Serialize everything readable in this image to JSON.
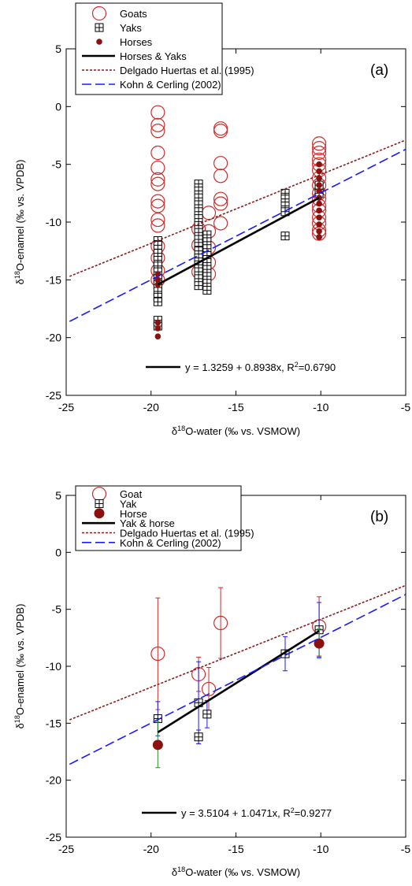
{
  "chart_data": [
    {
      "type": "scatter",
      "panel_label": "(a)",
      "xlabel": [
        "δ",
        "18",
        "O-water (‰ vs. VSMOW)"
      ],
      "ylabel": [
        "δ",
        "18",
        "O-enamel (‰ vs. VPDB)"
      ],
      "equation": [
        "y = 1.3259 + 0.8938x, R",
        "2",
        "=0.6790"
      ],
      "xlim": [
        -25,
        -5
      ],
      "ylim": [
        -25,
        5
      ],
      "xticks": [
        -25,
        -20,
        -15,
        -10,
        -5
      ],
      "yticks": [
        -25,
        -20,
        -15,
        -10,
        -5,
        0,
        5
      ],
      "series": [
        {
          "name": "Goats",
          "color": "#d42a2a",
          "marker": "open-circle",
          "x": [
            -19.6,
            -19.6,
            -19.6,
            -19.6,
            -19.6,
            -19.6,
            -19.6,
            -19.6,
            -19.6,
            -19.6,
            -19.6,
            -19.6,
            -19.6,
            -19.6,
            -19.6,
            -17.2,
            -17.2,
            -17.2,
            -16.6,
            -16.6,
            -16.6,
            -16.6,
            -16.6,
            -15.9,
            -15.9,
            -15.9,
            -15.9,
            -15.9,
            -15.9,
            -15.9,
            -10.1,
            -10.1,
            -10.1,
            -10.1,
            -10.1,
            -10.1,
            -10.1,
            -10.1,
            -10.1,
            -10.1,
            -10.1,
            -10.1,
            -10.1,
            -10.1,
            -10.1,
            -10.1
          ],
          "values": [
            -0.5,
            -1.6,
            -2.1,
            -4,
            -5.3,
            -6.3,
            -6.7,
            -8.2,
            -8.6,
            -9.8,
            -10.3,
            -12.1,
            -13.1,
            -14.2,
            -15,
            -10.6,
            -12,
            -14.3,
            -9.2,
            -10.8,
            -12.2,
            -13.5,
            -14.5,
            -1.9,
            -2.1,
            -4.9,
            -6,
            -8,
            -8.4,
            -10.1,
            -3.2,
            -3.6,
            -4,
            -4.6,
            -5,
            -5.5,
            -6.2,
            -6.8,
            -7.5,
            -8,
            -8.6,
            -9,
            -9.6,
            -10.1,
            -10.7,
            -11
          ]
        },
        {
          "name": "Yaks",
          "color": "#000000",
          "marker": "boxed-plus",
          "x": [
            -19.6,
            -19.6,
            -19.6,
            -19.6,
            -19.6,
            -19.6,
            -19.6,
            -19.6,
            -19.6,
            -19.6,
            -19.6,
            -19.6,
            -19.6,
            -17.2,
            -17.2,
            -17.2,
            -17.2,
            -17.2,
            -17.2,
            -17.2,
            -17.2,
            -17.2,
            -17.2,
            -17.2,
            -17.2,
            -17.2,
            -17.2,
            -17.2,
            -17.2,
            -16.7,
            -16.7,
            -16.7,
            -16.7,
            -16.7,
            -16.7,
            -16.7,
            -16.7,
            -16.7,
            -12.1,
            -12.1,
            -12.1,
            -12.1,
            -12.1,
            -10.1,
            -10.1
          ],
          "values": [
            -11.6,
            -12,
            -12.7,
            -13.3,
            -13.8,
            -14.3,
            -14.9,
            -15.4,
            -16,
            -16.5,
            -16.9,
            -18.5,
            -19,
            -6.7,
            -7.3,
            -7.9,
            -8.5,
            -9.1,
            -9.7,
            -10.3,
            -10.9,
            -11.5,
            -12.1,
            -12.5,
            -13.1,
            -13.7,
            -14.3,
            -14.9,
            -15.5,
            -11.1,
            -11.7,
            -12.3,
            -12.9,
            -13.5,
            -14.1,
            -14.7,
            -15.3,
            -15.9,
            -7.5,
            -8,
            -8.6,
            -9.1,
            -11.2,
            -6.8,
            -7.5
          ]
        },
        {
          "name": "Horses",
          "color": "#8b1010",
          "marker": "dot",
          "x": [
            -19.6,
            -19.6,
            -19.6,
            -19.6,
            -19.6,
            -19.6,
            -10.1,
            -10.1,
            -10.1,
            -10.1,
            -10.1,
            -10.1,
            -10.1,
            -10.1,
            -10.1,
            -10.1,
            -10.1,
            -10.1
          ],
          "values": [
            -14.5,
            -15,
            -15.4,
            -18.7,
            -19.2,
            -19.9,
            -5,
            -5.6,
            -6.2,
            -6.8,
            -7.3,
            -7.9,
            -8.4,
            -9,
            -9.6,
            -10.2,
            -10.8,
            -11.3
          ]
        },
        {
          "name": "Horses & Yaks",
          "color": "#000000",
          "marker": "line",
          "dash": "solid",
          "x": [
            -19.6,
            -10.1
          ],
          "values": [
            -15.4,
            -7.9
          ]
        },
        {
          "name": "Delgado Huertas et al. (1995)",
          "color": "#8b1a1a",
          "marker": "line",
          "dash": "dotted",
          "x": [
            -24.8,
            -5
          ],
          "values": [
            -14.7,
            -2.9
          ]
        },
        {
          "name": "Kohn & Cerling (2002)",
          "color": "#1a1aff",
          "marker": "line",
          "dash": "dashed",
          "x": [
            -24.8,
            -5
          ],
          "values": [
            -18.6,
            -3.7
          ]
        }
      ]
    },
    {
      "type": "scatter",
      "panel_label": "(b)",
      "xlabel": [
        "δ",
        "18",
        "O-water (‰ vs. VSMOW)"
      ],
      "ylabel": [
        "δ",
        "18",
        "O-enamel (‰ vs. VPDB)"
      ],
      "equation": [
        "y = 3.5104 + 1.0471x, R",
        "2",
        "=0.9277"
      ],
      "xlim": [
        -25,
        -5
      ],
      "ylim": [
        -25,
        5
      ],
      "xticks": [
        -25,
        -20,
        -15,
        -10,
        -5
      ],
      "yticks": [
        -25,
        -20,
        -15,
        -10,
        -5,
        0,
        5
      ],
      "series": [
        {
          "name": "Goat",
          "color": "#d42a2a",
          "marker": "open-circle",
          "error_color": "#d42a2a",
          "x": [
            -19.6,
            -17.2,
            -16.6,
            -15.9,
            -10.1
          ],
          "values": [
            -8.9,
            -10.7,
            -12,
            -6.2,
            -6.5
          ],
          "errors": [
            4.9,
            1.5,
            1.9,
            3.1,
            2.6
          ]
        },
        {
          "name": "Yak",
          "color": "#000000",
          "marker": "boxed-plus",
          "error_color": "#1a1aff",
          "x": [
            -19.6,
            -17.2,
            -17.2,
            -16.7,
            -12.1,
            -10.1
          ],
          "values": [
            -14.6,
            -13.2,
            -16.2,
            -14.2,
            -8.9,
            -6.8
          ],
          "errors": [
            1.5,
            3.6,
            0.6,
            1.2,
            1.5,
            2.4
          ]
        },
        {
          "name": "Horse",
          "color": "#8b1010",
          "marker": "dot",
          "error_color": "#2e8b2e",
          "x": [
            -19.6,
            -10.1
          ],
          "values": [
            -16.9,
            -8.0
          ],
          "errors": [
            2,
            1.3
          ]
        },
        {
          "name": "Yak & horse",
          "color": "#000000",
          "marker": "line",
          "dash": "solid",
          "x": [
            -19.6,
            -10.1
          ],
          "values": [
            -15.8,
            -6.9
          ]
        },
        {
          "name": "Delgado Huertas et al. (1995)",
          "color": "#8b1a1a",
          "marker": "line",
          "dash": "dotted",
          "x": [
            -24.8,
            -5
          ],
          "values": [
            -14.7,
            -2.9
          ]
        },
        {
          "name": "Kohn & Cerling (2002)",
          "color": "#1a1aff",
          "marker": "line",
          "dash": "dashed",
          "x": [
            -24.8,
            -5
          ],
          "values": [
            -18.6,
            -3.7
          ]
        }
      ]
    }
  ]
}
